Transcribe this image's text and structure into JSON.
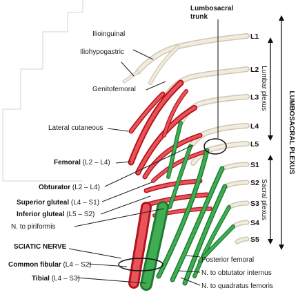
{
  "colors": {
    "lumbar_white": "#e9e3d3",
    "femoral_red": "#d8262e",
    "sacral_green": "#2f9a44"
  },
  "labels": {
    "lumbosacral_trunk_line1": "Lumbosacral",
    "lumbosacral_trunk_line2": "trunk",
    "ilioinguinal": "Ilioinguinal",
    "iliohypogastric": "Iliohypogastric",
    "genitofemoral": "Genitofemoral",
    "lateral_cutaneous": "Lateral cutaneous",
    "femoral_name": "Femoral",
    "femoral_roots": " (L2 – L4)",
    "obturator_name": "Obturator",
    "obturator_roots": " (L2 – L4)",
    "superior_gluteal_name": "Superior gluteal",
    "superior_gluteal_roots": " (L4 – S1)",
    "inferior_gluteal_name": "Inferior gluteal",
    "inferior_gluteal_roots": " (L5 – S2)",
    "n_to_piriformis": "N. to piriformis",
    "sciatic_nerve": "SCIATIC NERVE",
    "common_fibular_name": "Common fibular",
    "common_fibular_roots": " (L4 – S2)",
    "tibial_name": "Tibial",
    "tibial_roots": " (L4 – S3)",
    "posterior_femoral": "Posterior femoral",
    "n_to_obturator_internus": "N. to obtutator internus",
    "n_to_quadratus_femoris": "N. to quadratus femoris"
  },
  "roots": [
    "L1",
    "L2",
    "L3",
    "L4",
    "L5",
    "S1",
    "S2",
    "S3",
    "S4",
    "S5"
  ],
  "brackets": {
    "lumbar_plexus": "Lumbar plexus",
    "sacral_plexus": "Sacral plexus",
    "lumbosacral_plexus": "LUMBOSACRAL PLEXUS"
  }
}
